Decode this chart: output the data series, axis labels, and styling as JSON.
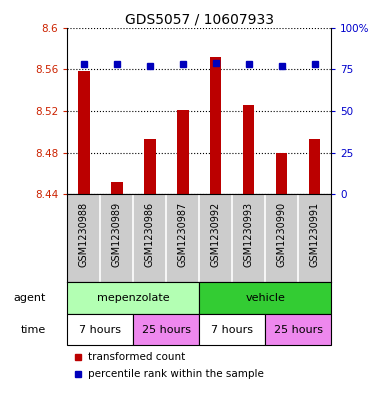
{
  "title": "GDS5057 / 10607933",
  "samples": [
    "GSM1230988",
    "GSM1230989",
    "GSM1230986",
    "GSM1230987",
    "GSM1230992",
    "GSM1230993",
    "GSM1230990",
    "GSM1230991"
  ],
  "transformed_count": [
    8.558,
    8.452,
    8.493,
    8.521,
    8.572,
    8.526,
    8.48,
    8.493
  ],
  "percentile_rank": [
    78,
    78,
    77,
    78,
    79,
    78,
    77,
    78
  ],
  "ylim_left": [
    8.44,
    8.6
  ],
  "ylim_right": [
    0,
    100
  ],
  "yticks_left": [
    8.44,
    8.48,
    8.52,
    8.56,
    8.6
  ],
  "yticks_right": [
    0,
    25,
    50,
    75,
    100
  ],
  "bar_color": "#bb0000",
  "dot_color": "#0000bb",
  "bar_bottom": 8.44,
  "bar_width": 0.35,
  "dot_size": 5,
  "grid_linestyle": ":",
  "grid_linewidth": 0.8,
  "tick_color_left": "#cc2200",
  "tick_color_right": "#0000cc",
  "bg_sample_row": "#cccccc",
  "agent_light_green": "#b3ffb3",
  "agent_dark_green": "#33cc33",
  "time_white": "#ffffff",
  "time_pink": "#ee88ee",
  "border_color": "#000000",
  "legend_text1": "transformed count",
  "legend_text2": "percentile rank within the sample",
  "title_fontsize": 10,
  "tick_fontsize": 7.5,
  "sample_fontsize": 7,
  "meta_fontsize": 8,
  "legend_fontsize": 7.5
}
